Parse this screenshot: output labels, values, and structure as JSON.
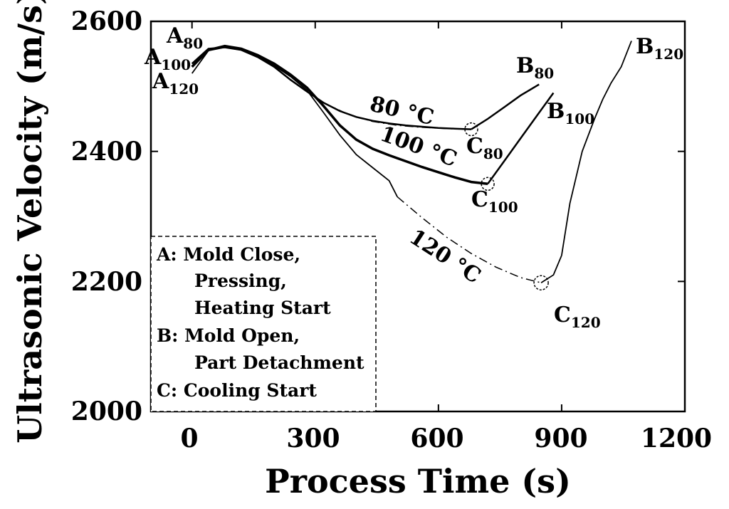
{
  "chart_data": {
    "type": "line",
    "title": "",
    "xlabel": "Process Time (s)",
    "ylabel": "Ultrasonic Velocity (m/s)",
    "xlim": [
      -100,
      1200
    ],
    "ylim": [
      2000,
      2600
    ],
    "xticks": [
      "0",
      "300",
      "600",
      "900",
      "1200"
    ],
    "yticks": [
      "2000",
      "2200",
      "2400",
      "2600"
    ],
    "grid": false,
    "series": [
      {
        "style": "solid",
        "color": "#000000",
        "x": [
          0,
          40,
          80,
          120,
          160,
          200,
          240,
          280,
          320,
          360,
          400,
          440,
          480,
          520,
          560,
          600,
          640,
          680
        ],
        "y": [
          2535,
          2558,
          2560,
          2556,
          2545,
          2530,
          2510,
          2492,
          2475,
          2462,
          2453,
          2447,
          2443,
          2440,
          2438,
          2436,
          2435,
          2434
        ]
      },
      {
        "style": "solid",
        "color": "#000000",
        "x": [
          680,
          720,
          760,
          800,
          845
        ],
        "y": [
          2434,
          2450,
          2468,
          2486,
          2503
        ]
      },
      {
        "style": "solid",
        "color": "#000000",
        "x": [
          0,
          40,
          80,
          120,
          160,
          200,
          240,
          280,
          320,
          360,
          400,
          440,
          480,
          520,
          560,
          600,
          640,
          680,
          720
        ],
        "y": [
          2530,
          2556,
          2562,
          2558,
          2548,
          2535,
          2518,
          2498,
          2470,
          2440,
          2418,
          2404,
          2394,
          2385,
          2376,
          2368,
          2360,
          2353,
          2350
        ]
      },
      {
        "style": "solid",
        "color": "#000000",
        "x": [
          720,
          760,
          800,
          840,
          880
        ],
        "y": [
          2350,
          2385,
          2420,
          2455,
          2490
        ]
      },
      {
        "style": "solid",
        "color": "#000000",
        "x": [
          0,
          40,
          80,
          120,
          160,
          200,
          240,
          280,
          320,
          360,
          400,
          440,
          480,
          500
        ],
        "y": [
          2520,
          2555,
          2560,
          2556,
          2546,
          2532,
          2515,
          2494,
          2460,
          2425,
          2395,
          2375,
          2355,
          2330
        ]
      },
      {
        "style": "dash-dot",
        "color": "#000000",
        "x": [
          500,
          560,
          620,
          680,
          740,
          800,
          850
        ],
        "y": [
          2330,
          2298,
          2268,
          2243,
          2222,
          2206,
          2198
        ]
      },
      {
        "style": "solid",
        "color": "#000000",
        "x": [
          850,
          880,
          900,
          920,
          950,
          980,
          1000,
          1020,
          1045,
          1070
        ],
        "y": [
          2198,
          2210,
          2240,
          2320,
          2400,
          2450,
          2480,
          2505,
          2530,
          2570
        ]
      },
      {
        "style": "dash-dot",
        "color": "#000000",
        "x": [
          320,
          380,
          440,
          500,
          560,
          620,
          680
        ],
        "y": [
          2475,
          2457,
          2446,
          2440,
          2437,
          2435,
          2434
        ]
      }
    ],
    "annotations": {
      "a80": "A",
      "a80_sub": "80",
      "a100": "A",
      "a100_sub": "100",
      "a120": "A",
      "a120_sub": "120",
      "b80": "B",
      "b80_sub": "80",
      "b100": "B",
      "b100_sub": "100",
      "b120": "B",
      "b120_sub": "120",
      "c80": "C",
      "c80_sub": "80",
      "c100": "C",
      "c100_sub": "100",
      "c120": "C",
      "c120_sub": "120",
      "t80": "80 °C",
      "t100": "100 °C",
      "t120": "120 °C"
    },
    "markers": [
      {
        "x": 680,
        "y": 2434
      },
      {
        "x": 720,
        "y": 2350
      },
      {
        "x": 850,
        "y": 2198
      }
    ],
    "legend": {
      "placement": "bottom-left",
      "lines": [
        "A: Mold  Close,",
        "Pressing,",
        "Heating Start",
        "B: Mold  Open,",
        "Part Detachment",
        "C: Cooling Start"
      ]
    }
  }
}
